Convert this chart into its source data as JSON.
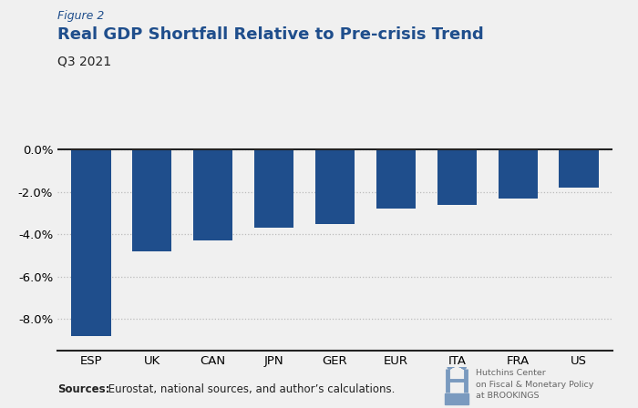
{
  "figure_label": "Figure 2",
  "title": "Real GDP Shortfall Relative to Pre-crisis Trend",
  "subtitle": "Q3 2021",
  "categories": [
    "ESP",
    "UK",
    "CAN",
    "JPN",
    "GER",
    "EUR",
    "ITA",
    "FRA",
    "US"
  ],
  "values": [
    -8.8,
    -4.8,
    -4.3,
    -3.7,
    -3.5,
    -2.8,
    -2.6,
    -2.3,
    -1.8
  ],
  "bar_color": "#1f4e8c",
  "background_color": "#f0f0f0",
  "ylim": [
    -9.5,
    0.5
  ],
  "yticks": [
    0.0,
    -2.0,
    -4.0,
    -6.0,
    -8.0
  ],
  "sources_bold": "Sources:",
  "sources_rest": " Eurostat, national sources, and author’s calculations.",
  "grid_color": "#bbbbbb",
  "axis_line_color": "#222222",
  "title_color": "#1f4e8c",
  "figure_label_color": "#1f4e8c",
  "subtitle_color": "#222222",
  "hutchins_text": "Hutchins Center\non Fiscal & Monetary Policy\nat BROOKINGS",
  "hutchins_color": "#7a9abf"
}
